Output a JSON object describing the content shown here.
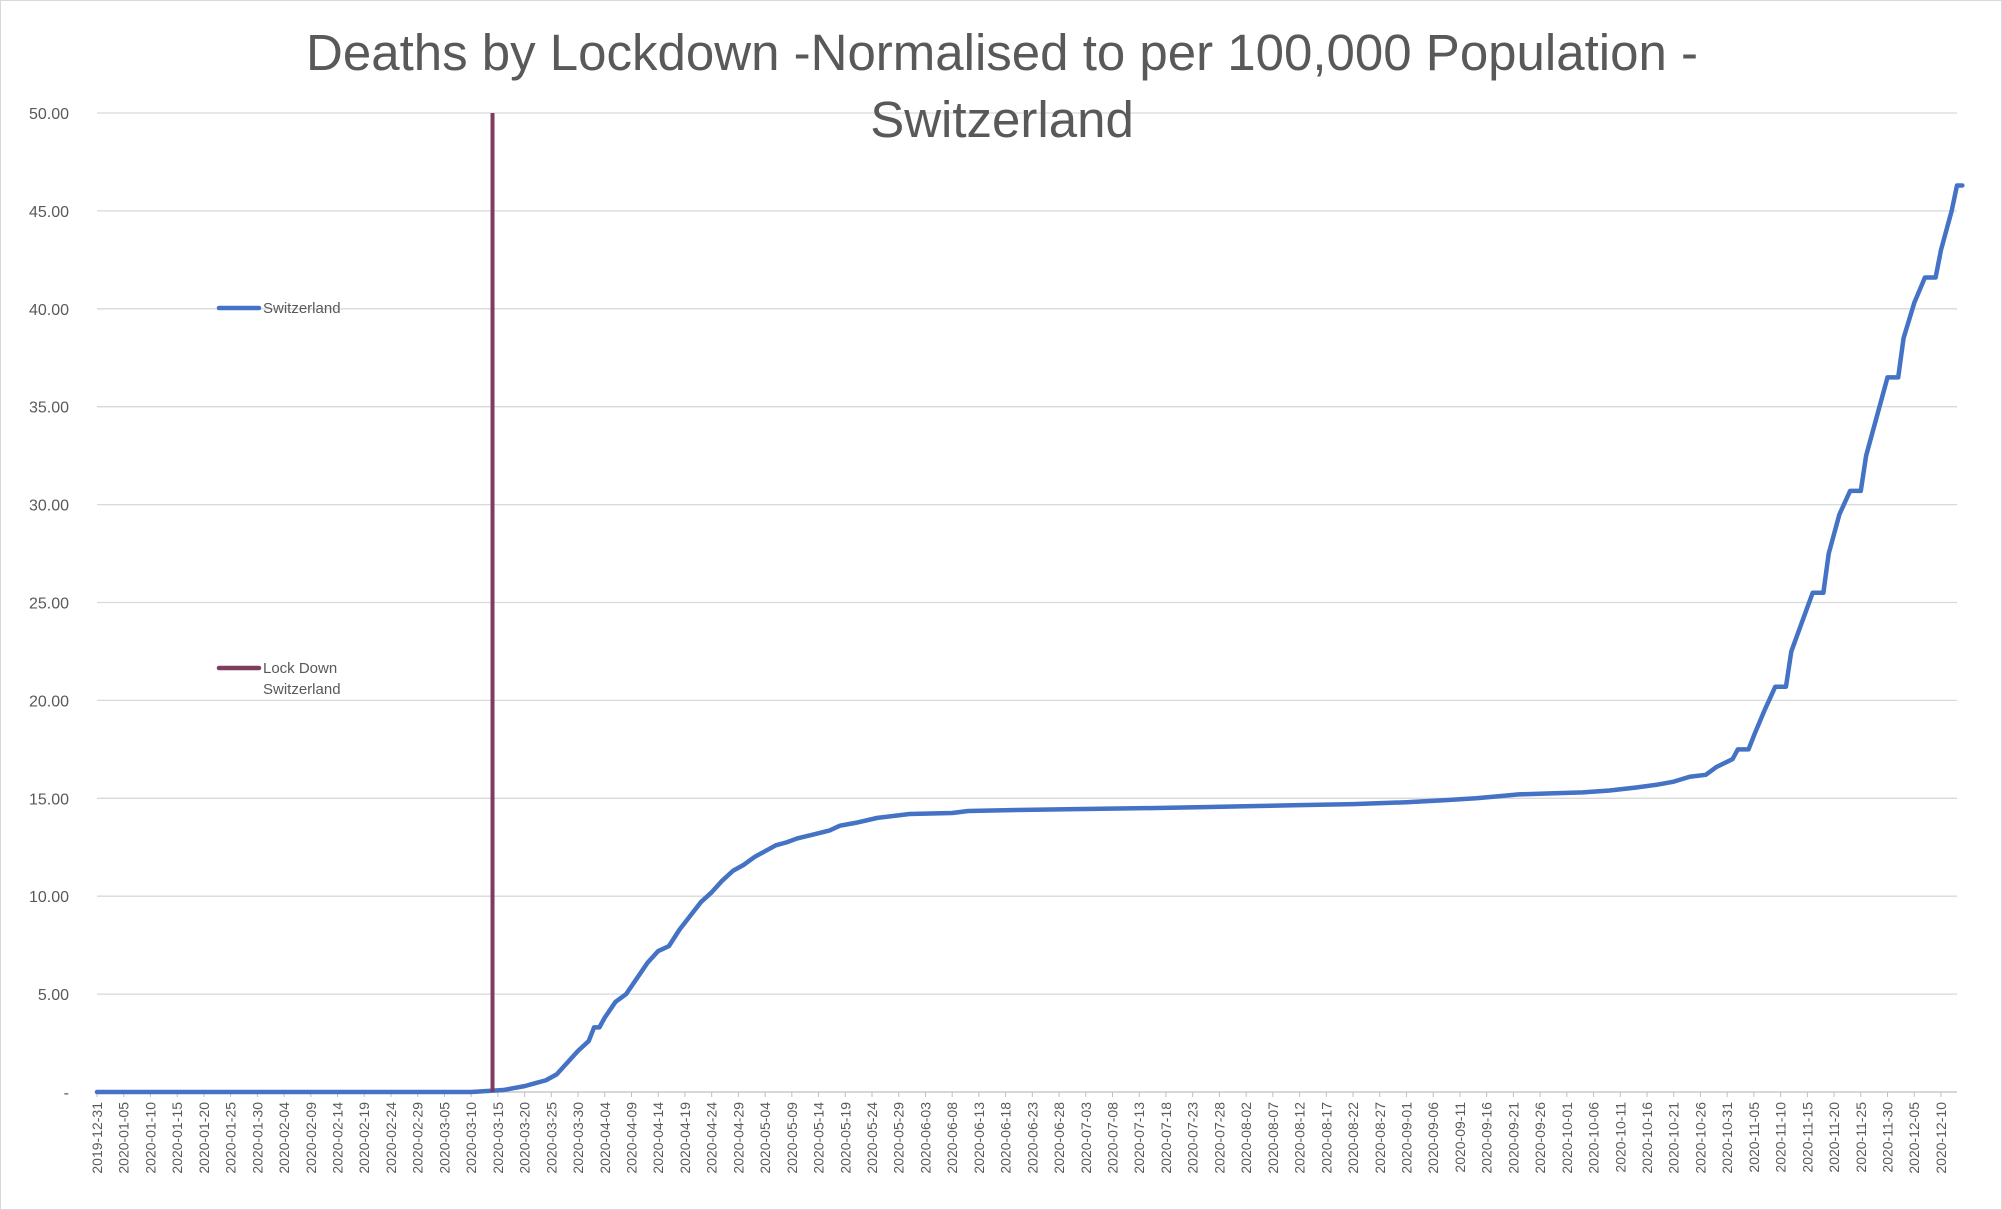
{
  "chart_data": {
    "type": "line",
    "title_lines": [
      "Deaths by Lockdown -Normalised to per 100,000 Population -",
      "Switzerland"
    ],
    "xlabel": "",
    "ylabel": "",
    "ylim": [
      0,
      50
    ],
    "grid": true,
    "legend_placement": "left",
    "x_range": [
      "2019-12-31",
      "2020-12-13"
    ],
    "y_ticks": [
      {
        "value": 0,
        "label": "-"
      },
      {
        "value": 5,
        "label": "5.00"
      },
      {
        "value": 10,
        "label": "10.00"
      },
      {
        "value": 15,
        "label": "15.00"
      },
      {
        "value": 20,
        "label": "20.00"
      },
      {
        "value": 25,
        "label": "25.00"
      },
      {
        "value": 30,
        "label": "30.00"
      },
      {
        "value": 35,
        "label": "35.00"
      },
      {
        "value": 40,
        "label": "40.00"
      },
      {
        "value": 45,
        "label": "45.00"
      },
      {
        "value": 50,
        "label": "50.00"
      }
    ],
    "x_tick_labels": [
      "2019-12-31",
      "2020-01-05",
      "2020-01-10",
      "2020-01-15",
      "2020-01-20",
      "2020-01-25",
      "2020-01-30",
      "2020-02-04",
      "2020-02-09",
      "2020-02-14",
      "2020-02-19",
      "2020-02-24",
      "2020-02-29",
      "2020-03-05",
      "2020-03-10",
      "2020-03-15",
      "2020-03-20",
      "2020-03-25",
      "2020-03-30",
      "2020-04-04",
      "2020-04-09",
      "2020-04-14",
      "2020-04-19",
      "2020-04-24",
      "2020-04-29",
      "2020-05-04",
      "2020-05-09",
      "2020-05-14",
      "2020-05-19",
      "2020-05-24",
      "2020-05-29",
      "2020-06-03",
      "2020-06-08",
      "2020-06-13",
      "2020-06-18",
      "2020-06-23",
      "2020-06-28",
      "2020-07-03",
      "2020-07-08",
      "2020-07-13",
      "2020-07-18",
      "2020-07-23",
      "2020-07-28",
      "2020-08-02",
      "2020-08-07",
      "2020-08-12",
      "2020-08-17",
      "2020-08-22",
      "2020-08-27",
      "2020-09-01",
      "2020-09-06",
      "2020-09-11",
      "2020-09-16",
      "2020-09-21",
      "2020-09-26",
      "2020-10-01",
      "2020-10-06",
      "2020-10-11",
      "2020-10-16",
      "2020-10-21",
      "2020-10-26",
      "2020-10-31",
      "2020-11-05",
      "2020-11-10",
      "2020-11-15",
      "2020-11-20",
      "2020-11-25",
      "2020-11-30",
      "2020-12-05",
      "2020-12-10"
    ],
    "series": [
      {
        "name": "Switzerland",
        "color": "#4472C4",
        "points": [
          [
            "2019-12-31",
            0.0
          ],
          [
            "2020-03-10",
            0.0
          ],
          [
            "2020-03-13",
            0.05
          ],
          [
            "2020-03-16",
            0.1
          ],
          [
            "2020-03-18",
            0.2
          ],
          [
            "2020-03-20",
            0.3
          ],
          [
            "2020-03-22",
            0.45
          ],
          [
            "2020-03-24",
            0.6
          ],
          [
            "2020-03-26",
            0.9
          ],
          [
            "2020-03-28",
            1.5
          ],
          [
            "2020-03-30",
            2.1
          ],
          [
            "2020-04-01",
            2.6
          ],
          [
            "2020-04-02",
            3.3
          ],
          [
            "2020-04-03",
            3.3
          ],
          [
            "2020-04-04",
            3.8
          ],
          [
            "2020-04-06",
            4.6
          ],
          [
            "2020-04-08",
            5.0
          ],
          [
            "2020-04-10",
            5.8
          ],
          [
            "2020-04-12",
            6.6
          ],
          [
            "2020-04-14",
            7.2
          ],
          [
            "2020-04-16",
            7.45
          ],
          [
            "2020-04-18",
            8.3
          ],
          [
            "2020-04-20",
            9.0
          ],
          [
            "2020-04-22",
            9.7
          ],
          [
            "2020-04-24",
            10.2
          ],
          [
            "2020-04-26",
            10.8
          ],
          [
            "2020-04-28",
            11.3
          ],
          [
            "2020-04-30",
            11.6
          ],
          [
            "2020-05-02",
            12.0
          ],
          [
            "2020-05-04",
            12.3
          ],
          [
            "2020-05-06",
            12.6
          ],
          [
            "2020-05-08",
            12.75
          ],
          [
            "2020-05-10",
            12.95
          ],
          [
            "2020-05-13",
            13.15
          ],
          [
            "2020-05-16",
            13.35
          ],
          [
            "2020-05-18",
            13.6
          ],
          [
            "2020-05-21",
            13.75
          ],
          [
            "2020-05-25",
            14.0
          ],
          [
            "2020-05-31",
            14.2
          ],
          [
            "2020-06-08",
            14.25
          ],
          [
            "2020-06-11",
            14.35
          ],
          [
            "2020-06-20",
            14.4
          ],
          [
            "2020-07-01",
            14.45
          ],
          [
            "2020-07-15",
            14.5
          ],
          [
            "2020-07-25",
            14.55
          ],
          [
            "2020-08-03",
            14.6
          ],
          [
            "2020-08-12",
            14.65
          ],
          [
            "2020-08-22",
            14.7
          ],
          [
            "2020-09-01",
            14.8
          ],
          [
            "2020-09-08",
            14.9
          ],
          [
            "2020-09-14",
            15.0
          ],
          [
            "2020-09-18",
            15.1
          ],
          [
            "2020-09-22",
            15.2
          ],
          [
            "2020-09-28",
            15.25
          ],
          [
            "2020-10-04",
            15.3
          ],
          [
            "2020-10-09",
            15.4
          ],
          [
            "2020-10-14",
            15.55
          ],
          [
            "2020-10-18",
            15.7
          ],
          [
            "2020-10-21",
            15.85
          ],
          [
            "2020-10-24",
            16.1
          ],
          [
            "2020-10-27",
            16.2
          ],
          [
            "2020-10-29",
            16.6
          ],
          [
            "2020-11-01",
            17.0
          ],
          [
            "2020-11-02",
            17.5
          ],
          [
            "2020-11-04",
            17.5
          ],
          [
            "2020-11-05",
            18.2
          ],
          [
            "2020-11-07",
            19.5
          ],
          [
            "2020-11-09",
            20.7
          ],
          [
            "2020-11-11",
            20.7
          ],
          [
            "2020-11-12",
            22.5
          ],
          [
            "2020-11-14",
            24.0
          ],
          [
            "2020-11-16",
            25.5
          ],
          [
            "2020-11-18",
            25.5
          ],
          [
            "2020-11-19",
            27.5
          ],
          [
            "2020-11-21",
            29.5
          ],
          [
            "2020-11-23",
            30.7
          ],
          [
            "2020-11-25",
            30.7
          ],
          [
            "2020-11-26",
            32.5
          ],
          [
            "2020-11-28",
            34.5
          ],
          [
            "2020-11-30",
            36.5
          ],
          [
            "2020-12-02",
            36.5
          ],
          [
            "2020-12-03",
            38.5
          ],
          [
            "2020-12-05",
            40.3
          ],
          [
            "2020-12-07",
            41.6
          ],
          [
            "2020-12-09",
            41.6
          ],
          [
            "2020-12-10",
            43.0
          ],
          [
            "2020-12-12",
            45.0
          ],
          [
            "2020-12-13",
            46.3
          ],
          [
            "2020-12-14",
            46.3
          ]
        ]
      },
      {
        "name": "Lock Down Switzerland",
        "legend_lines": [
          "Lock Down",
          "Switzerland"
        ],
        "color": "#7E3D5F",
        "type": "vertical-line",
        "x": "2020-03-14",
        "y_range": [
          0,
          50
        ]
      }
    ]
  }
}
